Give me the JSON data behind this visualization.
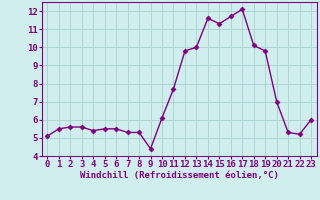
{
  "x": [
    0,
    1,
    2,
    3,
    4,
    5,
    6,
    7,
    8,
    9,
    10,
    11,
    12,
    13,
    14,
    15,
    16,
    17,
    18,
    19,
    20,
    21,
    22,
    23
  ],
  "y": [
    5.1,
    5.5,
    5.6,
    5.6,
    5.4,
    5.5,
    5.5,
    5.3,
    5.3,
    4.4,
    6.1,
    7.7,
    9.8,
    10.0,
    11.6,
    11.3,
    11.7,
    12.1,
    10.1,
    9.8,
    7.0,
    5.3,
    5.2,
    6.0
  ],
  "line_color": "#800080",
  "marker": "D",
  "marker_size": 2.5,
  "bg_color": "#d0eeee",
  "grid_color": "#a8d0d0",
  "xlabel": "Windchill (Refroidissement éolien,°C)",
  "xlabel_color": "#800080",
  "tick_color": "#800080",
  "spine_color": "#800080",
  "ylim": [
    4,
    12.5
  ],
  "xlim": [
    -0.5,
    23.5
  ],
  "yticks": [
    4,
    5,
    6,
    7,
    8,
    9,
    10,
    11,
    12
  ],
  "xticks": [
    0,
    1,
    2,
    3,
    4,
    5,
    6,
    7,
    8,
    9,
    10,
    11,
    12,
    13,
    14,
    15,
    16,
    17,
    18,
    19,
    20,
    21,
    22,
    23
  ],
  "linewidth": 1.0,
  "tick_fontsize": 6.5,
  "xlabel_fontsize": 6.5
}
